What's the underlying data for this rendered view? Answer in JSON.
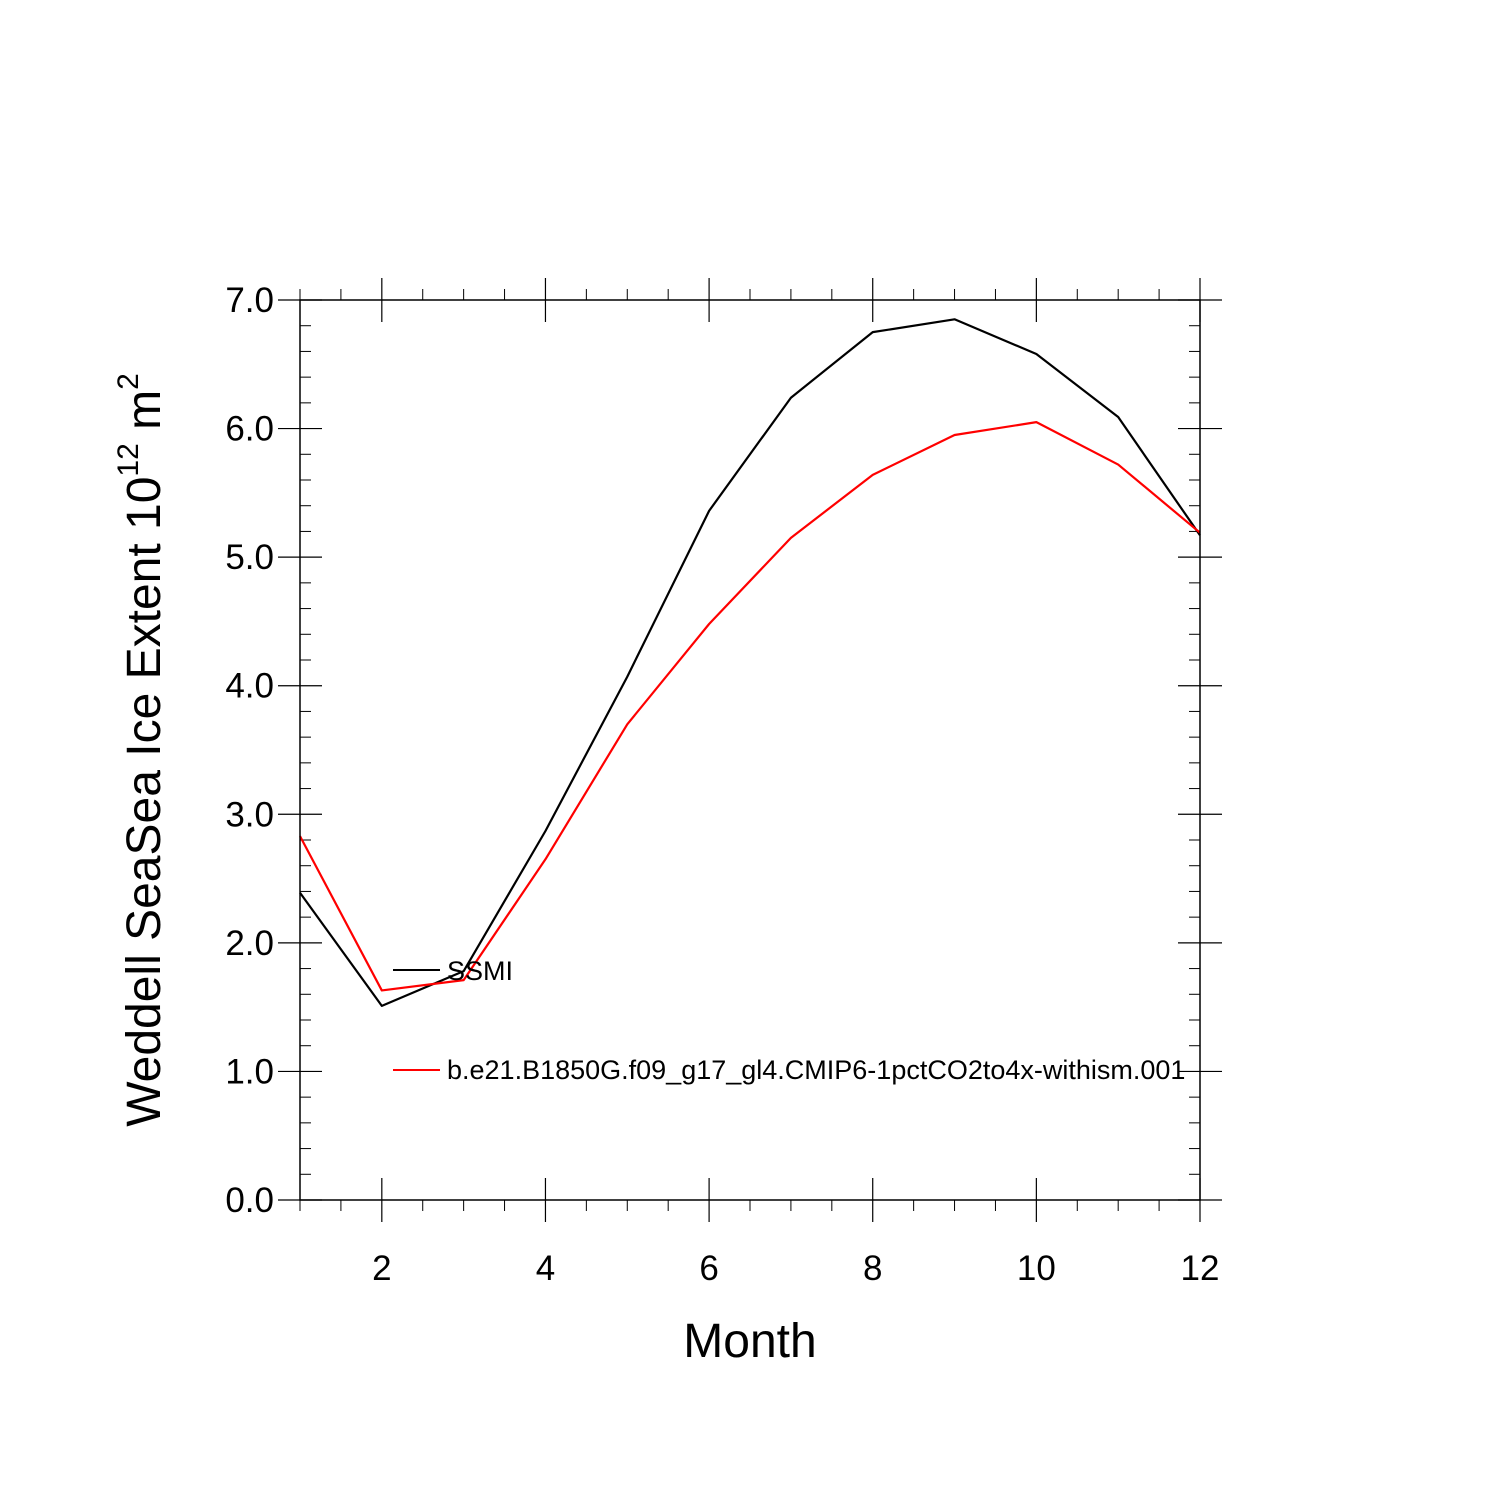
{
  "chart_data": {
    "type": "line",
    "title": "",
    "xlabel": "Month",
    "ylabel_base": "Weddell SeaSea Ice Extent 10",
    "ylabel_exp1": "12",
    "ylabel_unit": " m",
    "ylabel_exp2": "2",
    "xlim": [
      1,
      12
    ],
    "ylim": [
      0,
      7
    ],
    "xticks": [
      2,
      4,
      6,
      8,
      10,
      12
    ],
    "xtick_labels": [
      "2",
      "4",
      "6",
      "8",
      "10",
      "12"
    ],
    "yticks": [
      0,
      1,
      2,
      3,
      4,
      5,
      6,
      7
    ],
    "ytick_labels": [
      "0.0",
      "1.0",
      "2.0",
      "3.0",
      "4.0",
      "5.0",
      "6.0",
      "7.0"
    ],
    "x": [
      1,
      2,
      3,
      4,
      5,
      6,
      7,
      8,
      9,
      10,
      11,
      12
    ],
    "series": [
      {
        "name": "SSMI",
        "color": "#000000",
        "values": [
          2.39,
          1.51,
          1.78,
          2.87,
          4.07,
          5.36,
          6.24,
          6.75,
          6.85,
          6.58,
          6.09,
          5.17
        ]
      },
      {
        "name": "b.e21.B1850G.f09_g17_gl4.CMIP6-1pctCO2to4x-withism.001",
        "color": "#ff0000",
        "values": [
          2.83,
          1.63,
          1.71,
          2.65,
          3.7,
          4.48,
          5.15,
          5.64,
          5.95,
          6.05,
          5.72,
          5.19
        ]
      }
    ]
  }
}
